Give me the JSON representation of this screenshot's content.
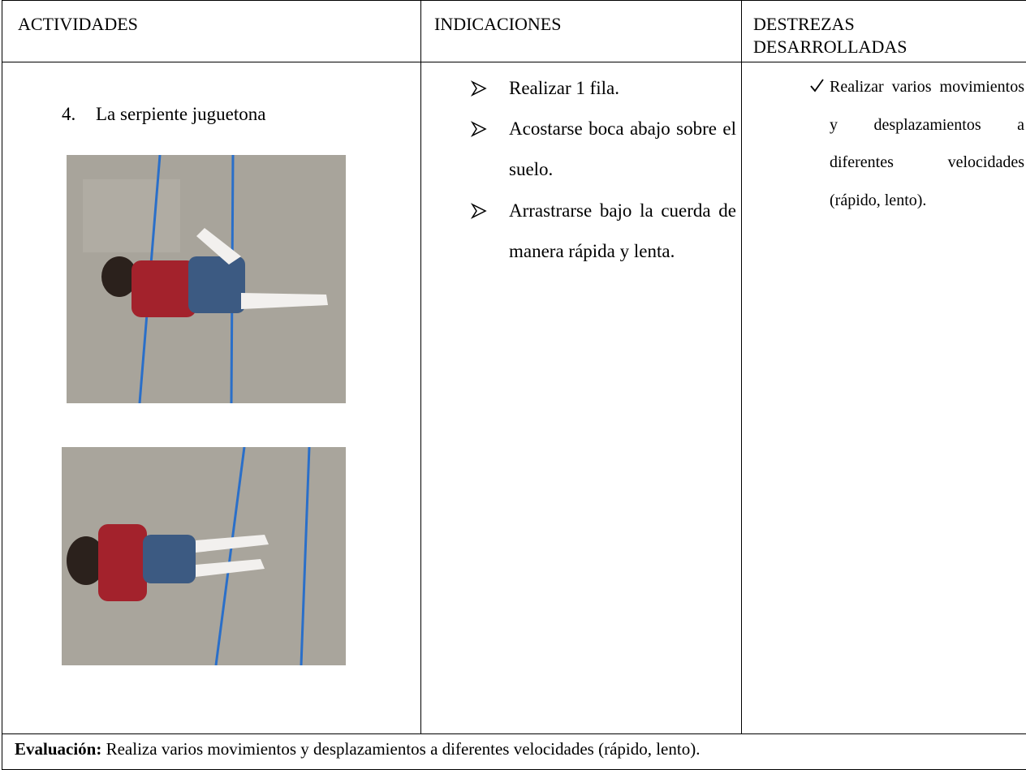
{
  "table": {
    "headers": [
      "ACTIVIDADES",
      "INDICACIONES",
      "DESTREZAS DESARROLLADAS"
    ],
    "activity": {
      "number": "4.",
      "title": "La serpiente juguetona"
    },
    "indications": [
      "Realizar 1 fila.",
      "Acostarse boca abajo sobre el suelo.",
      "Arrastrarse bajo la cuerda de manera rápida y lenta."
    ],
    "skills": [
      "Realizar varios movimientos y desplazamientos a diferentes velocidades (rápido, lento)."
    ],
    "evaluation": {
      "label": "Evaluación:",
      "text": "Realiza varios movimientos y desplazamientos a diferentes velocidades (rápido, lento)."
    }
  }
}
